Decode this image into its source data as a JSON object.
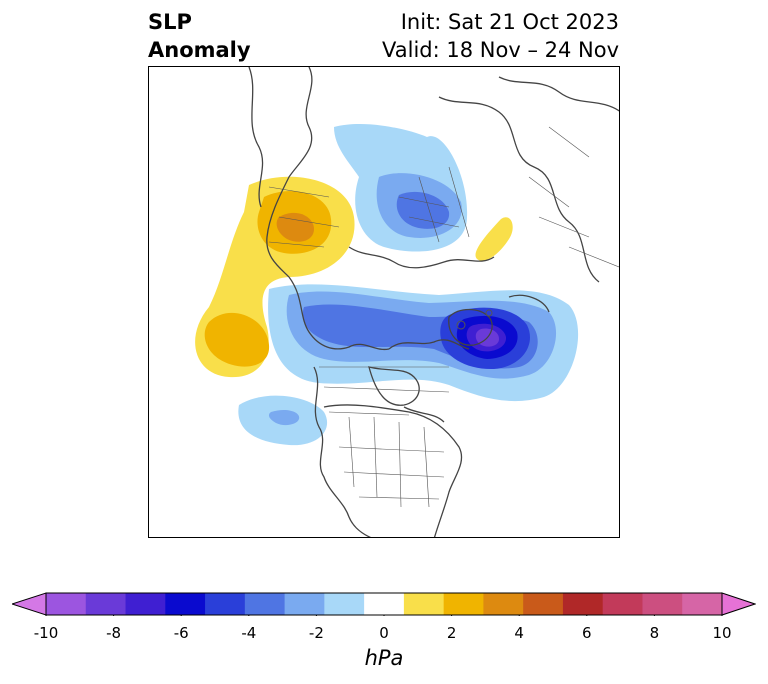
{
  "title": {
    "variable_line1": "SLP",
    "variable_line2": "Anomaly",
    "init_line": "Init: Sat 21 Oct 2023",
    "valid_line": "Valid: 18 Nov – 24 Nov"
  },
  "colorbar": {
    "unit": "hPa",
    "ticks": [
      "-10",
      "-8",
      "-6",
      "-4",
      "-2",
      "0",
      "2",
      "4",
      "6",
      "8",
      "10"
    ],
    "levels": [
      -10,
      -9,
      -8,
      -7,
      -6,
      -5,
      -4,
      -3,
      -2,
      -1,
      1,
      2,
      3,
      4,
      5,
      6,
      7,
      8,
      9,
      10
    ],
    "colors": [
      "#d478e6",
      "#9c55e0",
      "#6a3ad8",
      "#3f1fd2",
      "#0a0acf",
      "#2a3fd9",
      "#4f75e3",
      "#7aaaf0",
      "#a8d8f8",
      "#ffffff",
      "#f9df4a",
      "#f0b400",
      "#dd8a10",
      "#c95a1a",
      "#b02828",
      "#c23a5a",
      "#cc4f80",
      "#d665a6",
      "#e672d6"
    ],
    "extend": "both"
  },
  "map": {
    "projection": "north-polar-stereographic",
    "features": [
      "coastlines",
      "country-borders",
      "us-state-borders"
    ]
  }
}
